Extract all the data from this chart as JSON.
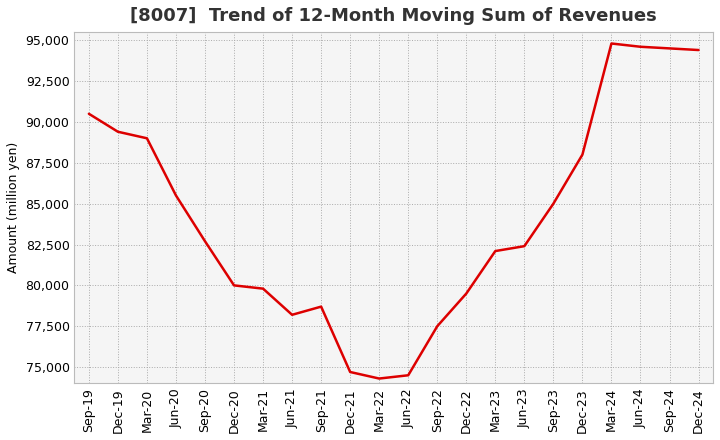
{
  "title": "[8007]  Trend of 12-Month Moving Sum of Revenues",
  "ylabel": "Amount (million yen)",
  "background_color": "#ffffff",
  "plot_bg_color": "#f5f5f5",
  "grid_color": "#aaaaaa",
  "line_color": "#dd0000",
  "x_labels": [
    "Sep-19",
    "Dec-19",
    "Mar-20",
    "Jun-20",
    "Sep-20",
    "Dec-20",
    "Mar-21",
    "Jun-21",
    "Sep-21",
    "Dec-21",
    "Mar-22",
    "Jun-22",
    "Sep-22",
    "Dec-22",
    "Mar-23",
    "Jun-23",
    "Sep-23",
    "Dec-23",
    "Mar-24",
    "Jun-24",
    "Sep-24",
    "Dec-24"
  ],
  "y_values": [
    90500,
    89400,
    89000,
    85500,
    82700,
    80000,
    79800,
    78200,
    78700,
    74700,
    74300,
    74500,
    77500,
    79500,
    82100,
    82400,
    85000,
    88000,
    94800,
    94600,
    94500,
    94400
  ],
  "ylim": [
    74000,
    95500
  ],
  "yticks": [
    75000,
    77500,
    80000,
    82500,
    85000,
    87500,
    90000,
    92500,
    95000
  ],
  "title_fontsize": 13,
  "axis_fontsize": 9,
  "tick_fontsize": 9
}
